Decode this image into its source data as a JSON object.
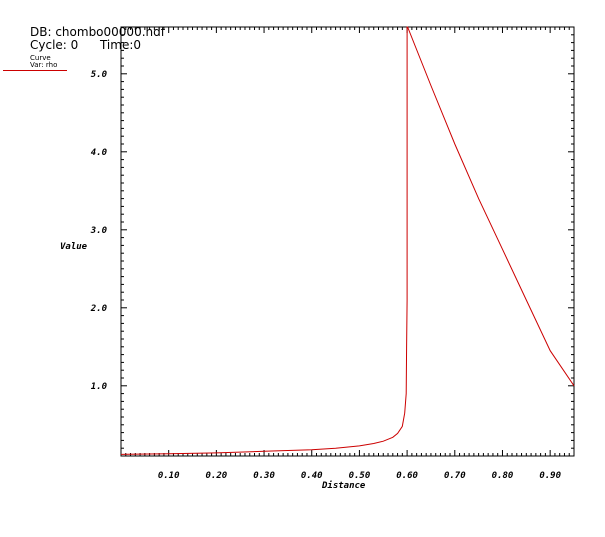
{
  "header": {
    "db_label": "DB: chombo00000.hdf",
    "cycle_label": "Cycle: 0",
    "time_label": "Time:0"
  },
  "legend": {
    "curve_label": "Curve",
    "var_label": "Var: rho",
    "line_color": "#cc0000"
  },
  "chart_data": {
    "type": "line",
    "xlabel": "Distance",
    "ylabel": "Value",
    "xlim": [
      0.0,
      0.95
    ],
    "ylim": [
      0.1,
      5.6
    ],
    "x_ticks": [
      "0.10",
      "0.20",
      "0.30",
      "0.40",
      "0.50",
      "0.60",
      "0.70",
      "0.80",
      "0.90"
    ],
    "y_ticks": [
      "1.0",
      "2.0",
      "3.0",
      "4.0",
      "5.0"
    ],
    "grid": false,
    "series": [
      {
        "color": "#cc0000",
        "x": [
          0.0,
          0.1,
          0.2,
          0.3,
          0.4,
          0.45,
          0.5,
          0.53,
          0.55,
          0.57,
          0.58,
          0.59,
          0.595,
          0.598,
          0.599,
          0.6,
          0.6,
          0.6,
          0.601,
          0.65,
          0.7,
          0.75,
          0.8,
          0.85,
          0.9,
          0.95
        ],
        "y": [
          0.12,
          0.13,
          0.14,
          0.16,
          0.18,
          0.2,
          0.23,
          0.26,
          0.29,
          0.34,
          0.39,
          0.48,
          0.65,
          0.9,
          1.5,
          2.1,
          3.4,
          5.6,
          5.6,
          4.85,
          4.1,
          3.4,
          2.75,
          2.1,
          1.45,
          1.0
        ]
      }
    ]
  }
}
